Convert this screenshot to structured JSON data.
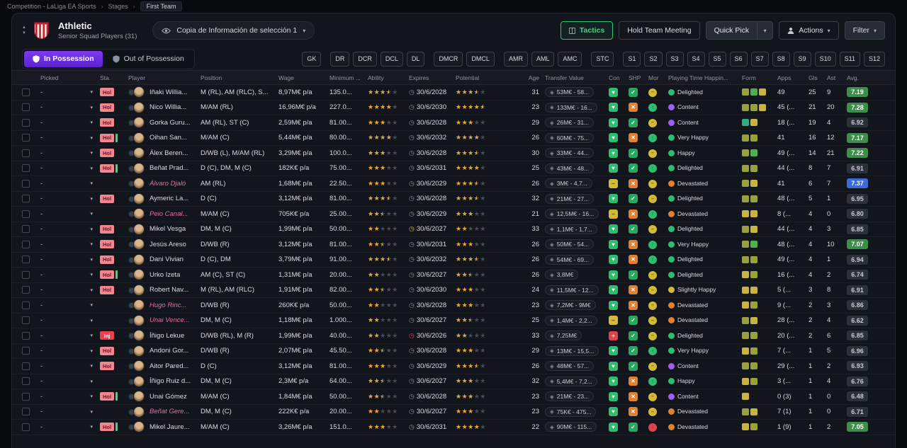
{
  "breadcrumb": {
    "separator": "›",
    "items": [
      "Competition - LaLiga EA Sports",
      "Stages",
      "First Team"
    ]
  },
  "header": {
    "club_name": "Athletic",
    "squad_label": "Senior Squad Players (31)",
    "view_selector": "Copia de Información de selección 1",
    "tactics_label": "Tactics",
    "meeting_label": "Hold Team Meeting",
    "quick_pick_label": "Quick Pick",
    "actions_label": "Actions",
    "filter_label": "Filter"
  },
  "possession": {
    "in_label": "In Possession",
    "out_label": "Out of Possession"
  },
  "position_filters": [
    "GK",
    "DR",
    "DCR",
    "DCL",
    "DL",
    "DMCR",
    "DMCL",
    "AMR",
    "AML",
    "AMC",
    "STC",
    "S1",
    "S2",
    "S3",
    "S4",
    "S5",
    "S6",
    "S7",
    "S8",
    "S9",
    "S10",
    "S11",
    "S12"
  ],
  "colors": {
    "accent_purple": "#7a3cf0",
    "accent_green": "#2dc76d",
    "star_gold": "#e3a93c",
    "listed_pink": "#e0719f",
    "holiday_badge": "#f0868f",
    "injury_badge": "#e8404d"
  },
  "table": {
    "columns": [
      "Picked",
      "Sta.",
      "Player",
      "Position",
      "Wage",
      "Minimum ...",
      "Ability",
      "Expires",
      "Potential",
      "Age",
      "Transfer Value",
      "Con",
      "SHP",
      "Mor",
      "Playing Time Happin...",
      "Form",
      "Apps",
      "Gls",
      "Ast",
      "Avg."
    ],
    "rows": [
      {
        "picked": "-",
        "sta": "Hol",
        "sta_bar": false,
        "player": "Iñaki Willia...",
        "listed": false,
        "position": "M (RL), AM (RLC), S...",
        "wage": "8,97M€ p/a",
        "minimum": "135.0...",
        "ability": 3.5,
        "expires": "30/6/2028",
        "expires_state": "normal",
        "potential": 3.5,
        "age": "31",
        "value": "53M€ - 58...",
        "con": "heart",
        "shp": "ok",
        "mor": "yellow",
        "happiness": "Delighted",
        "happiness_state": "green",
        "form": [
          "olive",
          "green",
          "yellow"
        ],
        "apps": "49",
        "gls": "25",
        "ast": "9",
        "avg": "7.19",
        "avg_tier": "green"
      },
      {
        "picked": "-",
        "sta": "Hol",
        "sta_bar": false,
        "player": "Nico Willia...",
        "listed": false,
        "position": "M/AM (RL)",
        "wage": "16,96M€ p/a",
        "minimum": "227.0...",
        "ability": 4,
        "expires": "30/6/2030",
        "expires_state": "normal",
        "potential": 4.5,
        "age": "23",
        "value": "133M€ - 16...",
        "con": "heart",
        "shp": "x",
        "mor": "green",
        "happiness": "Content",
        "happiness_state": "purple",
        "form": [
          "olive",
          "olive",
          "yellow"
        ],
        "apps": "45 (...",
        "gls": "21",
        "ast": "20",
        "avg": "7.28",
        "avg_tier": "green"
      },
      {
        "picked": "-",
        "sta": "Hol",
        "sta_bar": false,
        "player": "Gorka Guru...",
        "listed": false,
        "position": "AM (RL), ST (C)",
        "wage": "2,59M€ p/a",
        "minimum": "81.00...",
        "ability": 3,
        "expires": "30/6/2028",
        "expires_state": "normal",
        "potential": 3,
        "age": "29",
        "value": "26M€ - 31...",
        "con": "heart",
        "shp": "ok",
        "mor": "yellow",
        "happiness": "Content",
        "happiness_state": "purple",
        "form": [
          "teal",
          "yellow"
        ],
        "apps": "18 (...",
        "gls": "19",
        "ast": "4",
        "avg": "6.92",
        "avg_tier": "dark"
      },
      {
        "picked": "-",
        "sta": "Hol",
        "sta_bar": true,
        "player": "Oihan San...",
        "listed": false,
        "position": "M/AM (C)",
        "wage": "5,44M€ p/a",
        "minimum": "80.00...",
        "ability": 4,
        "expires": "30/6/2032",
        "expires_state": "normal",
        "potential": 4,
        "age": "26",
        "value": "60M€ - 75...",
        "con": "heart",
        "shp": "x",
        "mor": "green",
        "happiness": "Very Happy",
        "happiness_state": "green",
        "form": [
          "olive",
          "olive"
        ],
        "apps": "41",
        "gls": "16",
        "ast": "12",
        "avg": "7.17",
        "avg_tier": "green"
      },
      {
        "picked": "-",
        "sta": "Hol",
        "sta_bar": false,
        "player": "Álex Beren...",
        "listed": false,
        "position": "D/WB (L), M/AM (RL)",
        "wage": "3,29M€ p/a",
        "minimum": "100.0...",
        "ability": 3,
        "expires": "30/6/2028",
        "expires_state": "normal",
        "potential": 3.5,
        "age": "30",
        "value": "33M€ - 44...",
        "con": "heart",
        "shp": "ok",
        "mor": "yellow",
        "happiness": "Happy",
        "happiness_state": "green",
        "form": [
          "olive",
          "green"
        ],
        "apps": "49 (...",
        "gls": "14",
        "ast": "21",
        "avg": "7.22",
        "avg_tier": "green"
      },
      {
        "picked": "-",
        "sta": "Hol",
        "sta_bar": true,
        "player": "Beñat Prad...",
        "listed": false,
        "position": "D (C), DM, M (C)",
        "wage": "182K€ p/a",
        "minimum": "75.00...",
        "ability": 3,
        "expires": "30/6/2031",
        "expires_state": "normal",
        "potential": 4,
        "age": "25",
        "value": "43M€ - 48...",
        "con": "heart",
        "shp": "ok",
        "mor": "green",
        "happiness": "Delighted",
        "happiness_state": "green",
        "form": [
          "olive",
          "olive"
        ],
        "apps": "44 (...",
        "gls": "8",
        "ast": "7",
        "avg": "6.91",
        "avg_tier": "dark"
      },
      {
        "picked": "-",
        "sta": "",
        "sta_bar": false,
        "player": "Álvaro Djaló",
        "listed": true,
        "position": "AM (RL)",
        "wage": "1,68M€ p/a",
        "minimum": "22.50...",
        "ability": 3,
        "expires": "30/6/2029",
        "expires_state": "normal",
        "potential": 3.5,
        "age": "26",
        "value": "3M€ - 4,7...",
        "con": "dash",
        "shp": "x",
        "mor": "yellow",
        "happiness": "Devastated",
        "happiness_state": "orange",
        "form": [
          "olive",
          "yellow"
        ],
        "apps": "41",
        "gls": "6",
        "ast": "7",
        "avg": "7.37",
        "avg_tier": "blue"
      },
      {
        "picked": "-",
        "sta": "Hol",
        "sta_bar": false,
        "player": "Aymeric La...",
        "listed": false,
        "position": "D (C)",
        "wage": "3,12M€ p/a",
        "minimum": "81.00...",
        "ability": 3.5,
        "expires": "30/6/2028",
        "expires_state": "normal",
        "potential": 3.5,
        "age": "32",
        "value": "21M€ - 27...",
        "con": "heart",
        "shp": "ok",
        "mor": "yellow",
        "happiness": "Delighted",
        "happiness_state": "green",
        "form": [
          "olive",
          "olive"
        ],
        "apps": "48 (...",
        "gls": "5",
        "ast": "1",
        "avg": "6.95",
        "avg_tier": "dark"
      },
      {
        "picked": "-",
        "sta": "",
        "sta_bar": false,
        "player": "Peio Canal...",
        "listed": true,
        "position": "M/AM (C)",
        "wage": "705K€ p/a",
        "minimum": "25.00...",
        "ability": 2.5,
        "expires": "30/6/2029",
        "expires_state": "normal",
        "potential": 3,
        "age": "21",
        "value": "12,5M€ - 16...",
        "con": "dash",
        "shp": "x",
        "mor": "green",
        "happiness": "Devastated",
        "happiness_state": "orange",
        "form": [
          "yellow",
          "yellow"
        ],
        "apps": "8 (...",
        "gls": "4",
        "ast": "0",
        "avg": "6.80",
        "avg_tier": "dark"
      },
      {
        "picked": "-",
        "sta": "Hol",
        "sta_bar": false,
        "player": "Mikel Vesga",
        "listed": false,
        "position": "DM, M (C)",
        "wage": "1,99M€ p/a",
        "minimum": "50.00...",
        "ability": 2,
        "expires": "30/6/2027",
        "expires_state": "warn",
        "potential": 2,
        "age": "33",
        "value": "1,1M€ - 1,7...",
        "con": "heart",
        "shp": "ok",
        "mor": "yellow",
        "happiness": "Delighted",
        "happiness_state": "green",
        "form": [
          "olive",
          "yellow"
        ],
        "apps": "44 (...",
        "gls": "4",
        "ast": "3",
        "avg": "6.85",
        "avg_tier": "dark"
      },
      {
        "picked": "-",
        "sta": "Hol",
        "sta_bar": false,
        "player": "Jesús Areso",
        "listed": false,
        "position": "D/WB (R)",
        "wage": "3,12M€ p/a",
        "minimum": "81.00...",
        "ability": 2.5,
        "expires": "30/6/2031",
        "expires_state": "normal",
        "potential": 3,
        "age": "26",
        "value": "50M€ - 54...",
        "con": "heart",
        "shp": "x",
        "mor": "green",
        "happiness": "Very Happy",
        "happiness_state": "green",
        "form": [
          "olive",
          "green"
        ],
        "apps": "48 (...",
        "gls": "4",
        "ast": "10",
        "avg": "7.07",
        "avg_tier": "green"
      },
      {
        "picked": "-",
        "sta": "Hol",
        "sta_bar": false,
        "player": "Dani Vivian",
        "listed": false,
        "position": "D (C), DM",
        "wage": "3,79M€ p/a",
        "minimum": "91.00...",
        "ability": 3.5,
        "expires": "30/6/2032",
        "expires_state": "normal",
        "potential": 3.5,
        "age": "26",
        "value": "54M€ - 69...",
        "con": "heart",
        "shp": "x",
        "mor": "green",
        "happiness": "Delighted",
        "happiness_state": "green",
        "form": [
          "olive",
          "olive"
        ],
        "apps": "49 (...",
        "gls": "4",
        "ast": "1",
        "avg": "6.94",
        "avg_tier": "dark"
      },
      {
        "picked": "-",
        "sta": "Hol",
        "sta_bar": true,
        "player": "Urko Izeta",
        "listed": false,
        "position": "AM (C), ST (C)",
        "wage": "1,31M€ p/a",
        "minimum": "20.00...",
        "ability": 2,
        "expires": "30/6/2027",
        "expires_state": "normal",
        "potential": 2.5,
        "age": "26",
        "value": "3,8M€",
        "con": "heart",
        "shp": "ok",
        "mor": "yellow",
        "happiness": "Delighted",
        "happiness_state": "green",
        "form": [
          "yellow",
          "olive"
        ],
        "apps": "16 (...",
        "gls": "4",
        "ast": "2",
        "avg": "6.74",
        "avg_tier": "dark"
      },
      {
        "picked": "-",
        "sta": "Hol",
        "sta_bar": false,
        "player": "Robert Nav...",
        "listed": false,
        "position": "M (RL), AM (RLC)",
        "wage": "1,91M€ p/a",
        "minimum": "82.00...",
        "ability": 2.5,
        "expires": "30/6/2030",
        "expires_state": "normal",
        "potential": 3,
        "age": "24",
        "value": "11,5M€ - 12...",
        "con": "heart",
        "shp": "x",
        "mor": "yellow",
        "happiness": "Slightly Happy",
        "happiness_state": "yellow",
        "form": [
          "yellow",
          "yellow"
        ],
        "apps": "5 (...",
        "gls": "3",
        "ast": "8",
        "avg": "6.91",
        "avg_tier": "dark"
      },
      {
        "picked": "-",
        "sta": "",
        "sta_bar": false,
        "player": "Hugo Rinc...",
        "listed": true,
        "position": "D/WB (R)",
        "wage": "260K€ p/a",
        "minimum": "50.00...",
        "ability": 2,
        "expires": "30/6/2028",
        "expires_state": "normal",
        "potential": 3,
        "age": "23",
        "value": "7,2M€ - 9M€",
        "con": "heart",
        "shp": "x",
        "mor": "yellow",
        "happiness": "Devastated",
        "happiness_state": "orange",
        "form": [
          "yellow",
          "olive"
        ],
        "apps": "9 (...",
        "gls": "2",
        "ast": "3",
        "avg": "6.86",
        "avg_tier": "dark"
      },
      {
        "picked": "-",
        "sta": "",
        "sta_bar": false,
        "player": "Unai Vence...",
        "listed": true,
        "position": "DM, M (C)",
        "wage": "1,18M€ p/a",
        "minimum": "1.000...",
        "ability": 2,
        "expires": "30/6/2027",
        "expires_state": "normal",
        "potential": 2.5,
        "age": "25",
        "value": "1,4M€ - 2,2...",
        "con": "dash",
        "shp": "ok",
        "mor": "yellow",
        "happiness": "Devastated",
        "happiness_state": "orange",
        "form": [
          "olive",
          "yellow"
        ],
        "apps": "28 (...",
        "gls": "2",
        "ast": "4",
        "avg": "6.62",
        "avg_tier": "dark"
      },
      {
        "picked": "-",
        "sta": "Inj",
        "sta_bar": false,
        "player": "Íñigo Lekue",
        "listed": false,
        "position": "D/WB (RL), M (R)",
        "wage": "1,99M€ p/a",
        "minimum": "40.00...",
        "ability": 2,
        "expires": "30/6/2026",
        "expires_state": "danger",
        "potential": 2,
        "age": "33",
        "value": "7,25M€",
        "con": "plus",
        "shp": "ok",
        "mor": "yellow",
        "happiness": "Delighted",
        "happiness_state": "green",
        "form": [
          "olive",
          "olive"
        ],
        "apps": "20 (...",
        "gls": "2",
        "ast": "6",
        "avg": "6.85",
        "avg_tier": "dark"
      },
      {
        "picked": "-",
        "sta": "Hol",
        "sta_bar": false,
        "player": "Andoni Gor...",
        "listed": false,
        "position": "D/WB (R)",
        "wage": "2,07M€ p/a",
        "minimum": "45.50...",
        "ability": 2.5,
        "expires": "30/6/2028",
        "expires_state": "normal",
        "potential": 3,
        "age": "29",
        "value": "13M€ - 15,5...",
        "con": "heart",
        "shp": "ok",
        "mor": "green",
        "happiness": "Very Happy",
        "happiness_state": "green",
        "form": [
          "yellow",
          "olive"
        ],
        "apps": "7 (...",
        "gls": "1",
        "ast": "5",
        "avg": "6.96",
        "avg_tier": "dark"
      },
      {
        "picked": "-",
        "sta": "Hol",
        "sta_bar": false,
        "player": "Aitor Pared...",
        "listed": false,
        "position": "D (C)",
        "wage": "3,12M€ p/a",
        "minimum": "81.00...",
        "ability": 3,
        "expires": "30/6/2029",
        "expires_state": "normal",
        "potential": 3.5,
        "age": "26",
        "value": "48M€ - 57...",
        "con": "heart",
        "shp": "ok",
        "mor": "yellow",
        "happiness": "Content",
        "happiness_state": "purple",
        "form": [
          "olive",
          "olive"
        ],
        "apps": "29 (...",
        "gls": "1",
        "ast": "2",
        "avg": "6.93",
        "avg_tier": "dark"
      },
      {
        "picked": "-",
        "sta": "",
        "sta_bar": false,
        "player": "Íñigo Ruiz d...",
        "listed": false,
        "position": "DM, M (C)",
        "wage": "2,3M€ p/a",
        "minimum": "64.00...",
        "ability": 2.5,
        "expires": "30/6/2027",
        "expires_state": "normal",
        "potential": 3,
        "age": "32",
        "value": "5,4M€ - 7,2...",
        "con": "heart",
        "shp": "x",
        "mor": "green",
        "happiness": "Happy",
        "happiness_state": "green",
        "form": [
          "yellow",
          "olive"
        ],
        "apps": "3 (...",
        "gls": "1",
        "ast": "4",
        "avg": "6.76",
        "avg_tier": "dark"
      },
      {
        "picked": "-",
        "sta": "Hol",
        "sta_bar": true,
        "player": "Unai Gómez",
        "listed": false,
        "position": "M/AM (C)",
        "wage": "1,84M€ p/a",
        "minimum": "50.00...",
        "ability": 2.5,
        "expires": "30/6/2028",
        "expires_state": "normal",
        "potential": 3,
        "age": "23",
        "value": "21M€ - 23...",
        "con": "heart",
        "shp": "x",
        "mor": "yellow",
        "happiness": "Content",
        "happiness_state": "purple",
        "form": [
          "yellow"
        ],
        "apps": "0 (3)",
        "gls": "1",
        "ast": "0",
        "avg": "6.48",
        "avg_tier": "dark"
      },
      {
        "picked": "-",
        "sta": "",
        "sta_bar": false,
        "player": "Beñat Gere...",
        "listed": true,
        "position": "DM, M (C)",
        "wage": "222K€ p/a",
        "minimum": "20.00...",
        "ability": 2,
        "expires": "30/6/2027",
        "expires_state": "normal",
        "potential": 3,
        "age": "23",
        "value": "75K€ - 475...",
        "con": "heart",
        "shp": "x",
        "mor": "yellow",
        "happiness": "Devastated",
        "happiness_state": "orange",
        "form": [
          "olive",
          "yellow"
        ],
        "apps": "7 (1)",
        "gls": "1",
        "ast": "0",
        "avg": "6.71",
        "avg_tier": "dark"
      },
      {
        "picked": "-",
        "sta": "Hol",
        "sta_bar": true,
        "player": "Mikel Jaure...",
        "listed": false,
        "position": "M/AM (C)",
        "wage": "3,26M€ p/a",
        "minimum": "151.0...",
        "ability": 3,
        "expires": "30/6/2031",
        "expires_state": "normal",
        "potential": 4,
        "age": "22",
        "value": "90M€ - 115...",
        "con": "heart",
        "shp": "ok",
        "mor": "red",
        "happiness": "Devastated",
        "happiness_state": "orange",
        "form": [
          "yellow",
          "olive"
        ],
        "apps": "1 (9)",
        "gls": "1",
        "ast": "2",
        "avg": "7.05",
        "avg_tier": "green"
      }
    ]
  }
}
